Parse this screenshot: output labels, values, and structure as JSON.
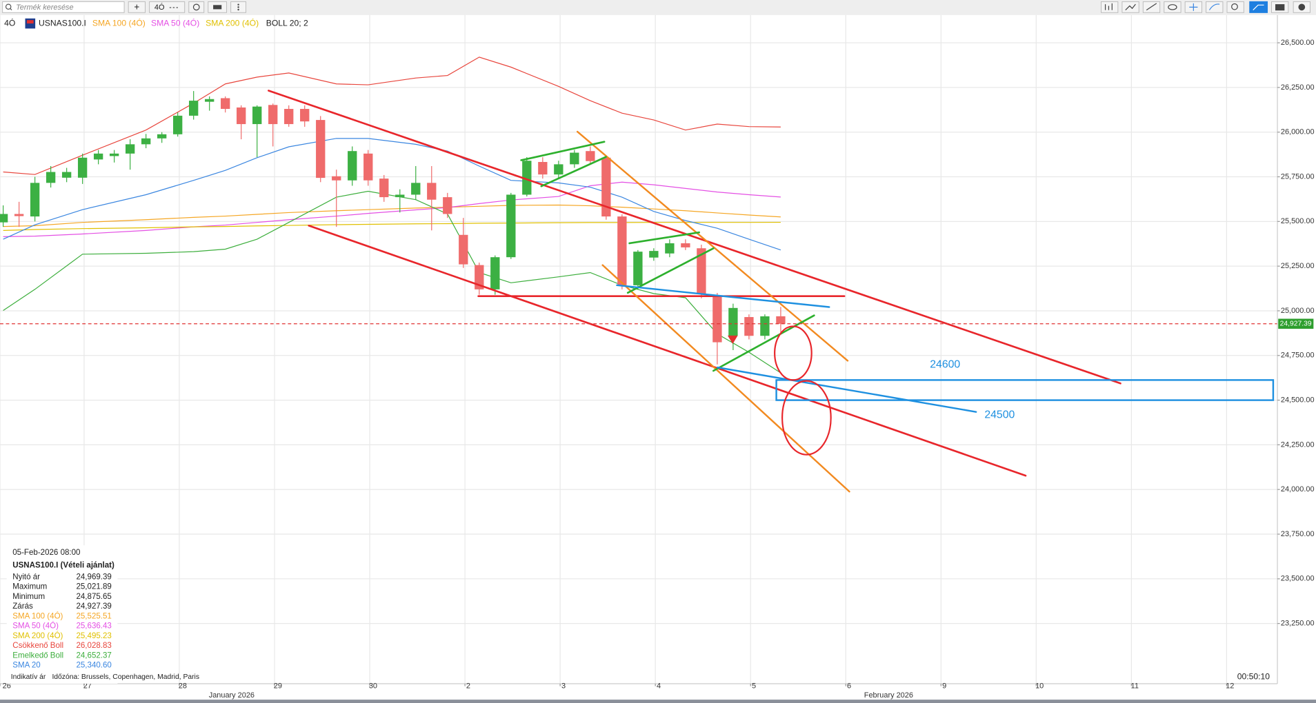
{
  "toolbar": {
    "search_placeholder": "Termék keresése",
    "add_button": "+",
    "interval": "4Ó"
  },
  "legend": {
    "symbol": "USNAS100.I",
    "boll": "BOLL 20; 2"
  },
  "chart_data": {
    "type": "candlestick",
    "xlim": [
      -0.2,
      80.3
    ],
    "ylim": [
      22913,
      26655
    ],
    "yticks": [
      {
        "value": 26500,
        "label": "26,500.00"
      },
      {
        "value": 26250,
        "label": "26,250.00"
      },
      {
        "value": 26000,
        "label": "26,000.00"
      },
      {
        "value": 25750,
        "label": "25,750.00"
      },
      {
        "value": 25500,
        "label": "25,500.00"
      },
      {
        "value": 25250,
        "label": "25,250.00"
      },
      {
        "value": 25000,
        "label": "25,000.00"
      },
      {
        "value": 24750,
        "label": "24,750.00"
      },
      {
        "value": 24500,
        "label": "24,500.00"
      },
      {
        "value": 24250,
        "label": "24,250.00"
      },
      {
        "value": 24000,
        "label": "24,000.00"
      },
      {
        "value": 23750,
        "label": "23,750.00"
      },
      {
        "value": 23500,
        "label": "23,500.00"
      },
      {
        "value": 23250,
        "label": "23,250.00"
      }
    ],
    "xticks": [
      {
        "value": -0.2,
        "label": "26"
      },
      {
        "value": 5.1,
        "label": "27"
      },
      {
        "value": 11.1,
        "label": "28"
      },
      {
        "value": 17.1,
        "label": "29"
      },
      {
        "value": 23.1,
        "label": "30"
      },
      {
        "value": 29.1,
        "label": "2"
      },
      {
        "value": 35.1,
        "label": "3"
      },
      {
        "value": 41.1,
        "label": "4"
      },
      {
        "value": 47.1,
        "label": "5"
      },
      {
        "value": 53.1,
        "label": "6"
      },
      {
        "value": 59.1,
        "label": "9"
      },
      {
        "value": 65.1,
        "label": "10"
      },
      {
        "value": 71.1,
        "label": "11"
      },
      {
        "value": 77.1,
        "label": "12"
      }
    ],
    "month_labels": [
      {
        "value": 14.4,
        "label": "January 2026"
      },
      {
        "value": 55.8,
        "label": "February 2026"
      }
    ],
    "up_color": "#3cb043",
    "down_color": "#ef6b6b",
    "open": [
      25495,
      25542,
      25528,
      25716,
      25745,
      25745,
      25847,
      25866,
      25880,
      25932,
      25965,
      25988,
      26092,
      26170,
      26190,
      26138,
      26045,
      26152,
      26130,
      26130,
      26068,
      25753,
      25730,
      25880,
      25740,
      25636,
      25650,
      25716,
      25636,
      25425,
      25256,
      25120,
      25300,
      25650,
      25833,
      25763,
      25820,
      25894,
      25857,
      25528,
      25143,
      25298,
      25321,
      25378,
      25350,
      25087,
      24860,
      24965,
      24860,
      24969.39
    ],
    "high": [
      25590,
      25610,
      25750,
      25810,
      25800,
      25880,
      25900,
      25900,
      25960,
      25990,
      26000,
      26110,
      26230,
      26200,
      26200,
      26150,
      26150,
      26160,
      26150,
      26150,
      26090,
      25790,
      25920,
      25900,
      25760,
      25680,
      25810,
      25810,
      25660,
      25520,
      25270,
      25310,
      25660,
      25860,
      25860,
      25840,
      25900,
      25920,
      25870,
      25540,
      25340,
      25350,
      25400,
      25400,
      25370,
      25100,
      25040,
      24980,
      24980,
      25021.89
    ],
    "low": [
      25470,
      25470,
      25500,
      25690,
      25720,
      25710,
      25820,
      25830,
      25790,
      25910,
      25940,
      25975,
      26070,
      26120,
      26110,
      25960,
      25860,
      25920,
      26030,
      26030,
      25720,
      25470,
      25700,
      25700,
      25610,
      25550,
      25620,
      25450,
      25520,
      25240,
      25090,
      25090,
      25290,
      25640,
      25740,
      25740,
      25800,
      25820,
      25510,
      25120,
      25120,
      25280,
      25300,
      25340,
      25070,
      24700,
      24780,
      24840,
      24840,
      24875.65
    ],
    "close": [
      25542,
      25530,
      25716,
      25777,
      25777,
      25857,
      25880,
      25880,
      25932,
      25965,
      25988,
      26092,
      26176,
      26185,
      26130,
      26045,
      26143,
      26045,
      26045,
      26060,
      25744,
      25730,
      25894,
      25730,
      25636,
      25650,
      25716,
      25622,
      25542,
      25260,
      25120,
      25300,
      25650,
      25840,
      25763,
      25820,
      25885,
      25838,
      25528,
      25143,
      25331,
      25335,
      25378,
      25355,
      25096,
      24824,
      25016,
      24860,
      24969,
      24927.39
    ],
    "indicator_x": [
      0,
      2,
      5,
      9,
      12,
      14,
      16,
      18,
      21,
      23,
      26,
      28,
      30,
      32,
      35,
      37,
      39,
      41,
      43,
      45,
      47,
      49
    ],
    "series": [
      {
        "name": "SMA 100 (4Ó)",
        "color": "#f5a623",
        "last_label": "25,525.51",
        "values": [
          25472,
          25476,
          25495,
          25510,
          25523,
          25530,
          25540,
          25550,
          25560,
          25566,
          25575,
          25580,
          25585,
          25590,
          25592,
          25588,
          25580,
          25570,
          25560,
          25548,
          25536,
          25525.51
        ]
      },
      {
        "name": "SMA 50 (4Ó)",
        "color": "#e44fe4",
        "last_label": "25,636.43",
        "values": [
          25415,
          25418,
          25430,
          25450,
          25470,
          25480,
          25495,
          25510,
          25530,
          25545,
          25565,
          25578,
          25600,
          25620,
          25640,
          25700,
          25720,
          25705,
          25685,
          25665,
          25650,
          25636.43
        ]
      },
      {
        "name": "SMA 200 (4Ó)",
        "color": "#e0c000",
        "last_label": "25,495.23",
        "values": [
          25450,
          25455,
          25460,
          25465,
          25470,
          25472,
          25475,
          25478,
          25482,
          25484,
          25487,
          25488,
          25490,
          25491,
          25493,
          25494,
          25494,
          25495,
          25495,
          25495,
          25495,
          25495.23
        ]
      },
      {
        "name": "Csökkenő Boll",
        "color": "#e8453c",
        "last_label": "26,028.83",
        "values": [
          25777,
          25763,
          25871,
          26012,
          26162,
          26270,
          26308,
          26331,
          26270,
          26265,
          26303,
          26317,
          26420,
          26364,
          26256,
          26176,
          26106,
          26068,
          26012,
          26045,
          26031,
          26028.83
        ]
      },
      {
        "name": "Emelkedő Boll",
        "color": "#3cae3c",
        "last_label": "24,652.37",
        "values": [
          25002,
          25120,
          25317,
          25322,
          25331,
          25345,
          25401,
          25495,
          25636,
          25669,
          25622,
          25542,
          25214,
          25157,
          25190,
          25214,
          25143,
          25096,
          25073,
          24871,
          24768,
          24652.37
        ]
      },
      {
        "name": "SMA 20",
        "color": "#3a86e0",
        "last_label": "25,340.60",
        "values": [
          25401,
          25481,
          25566,
          25650,
          25730,
          25786,
          25857,
          25918,
          25965,
          25965,
          25932,
          25894,
          25810,
          25730,
          25716,
          25692,
          25636,
          25556,
          25505,
          25462,
          25401,
          25340.6
        ]
      }
    ],
    "last_price": {
      "value": 24927.39,
      "label": "24,927.39"
    },
    "last_price_color": "#2e9e2e",
    "annotations": [
      "24600",
      "24500"
    ]
  },
  "info_panel": {
    "datetime": "05-Feb-2026 08:00",
    "instrument": "USNAS100.I (Vételi ajánlat)",
    "rows": [
      {
        "label": "Nyitó ár",
        "value": "24,969.39"
      },
      {
        "label": "Maximum",
        "value": "25,021.89"
      },
      {
        "label": "Minimum",
        "value": "24,875.65"
      },
      {
        "label": "Zárás",
        "value": "24,927.39"
      }
    ]
  },
  "footer": {
    "price_type": "Indikatív ár",
    "timezone": "Időzóna: Brussels, Copenhagen, Madrid, Paris",
    "clock": "00:50:10"
  }
}
